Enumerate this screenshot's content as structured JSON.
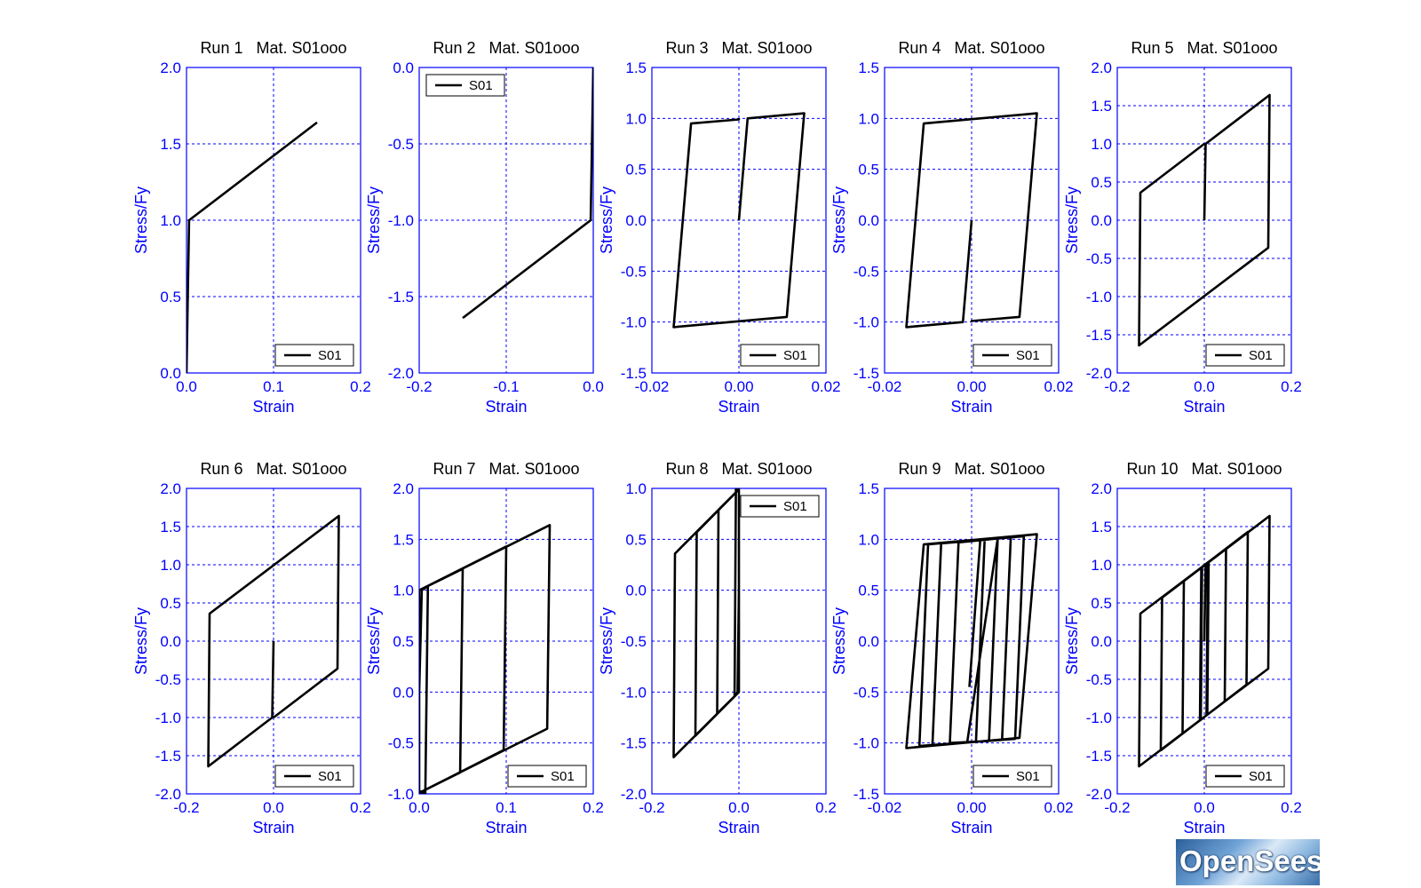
{
  "colors": {
    "axis": "#0000ff",
    "grid": "#0000ff",
    "curve": "#000000",
    "text": "#000000"
  },
  "logo": {
    "text": "OpenSees"
  },
  "chart_data": [
    {
      "type": "line",
      "title": "Run 1   Mat. S01ooo",
      "xlabel": "Strain",
      "ylabel": "Stress/Fy",
      "xlim": [
        0,
        0.2
      ],
      "ylim": [
        0,
        2
      ],
      "xticks": [
        0,
        0.1,
        0.2
      ],
      "xtick_labels": [
        "0.0",
        "0.1",
        "0.2"
      ],
      "yticks": [
        0,
        0.5,
        1,
        1.5,
        2
      ],
      "ytick_labels": [
        "0.0",
        "0.5",
        "1.0",
        "1.5",
        "2.0"
      ],
      "legend": "S01",
      "legend_pos": "bottom-right",
      "series": [
        {
          "name": "S01",
          "x": [
            0,
            0.003,
            0.15
          ],
          "y": [
            0,
            1.0,
            1.64
          ]
        }
      ]
    },
    {
      "type": "line",
      "title": "Run 2   Mat. S01ooo",
      "xlabel": "Strain",
      "ylabel": "Stress/Fy",
      "xlim": [
        -0.2,
        0
      ],
      "ylim": [
        -2,
        0
      ],
      "xticks": [
        -0.2,
        -0.1,
        0
      ],
      "xtick_labels": [
        "-0.2",
        "-0.1",
        "0.0"
      ],
      "yticks": [
        -2,
        -1.5,
        -1,
        -0.5,
        0
      ],
      "ytick_labels": [
        "-2.0",
        "-1.5",
        "-1.0",
        "-0.5",
        "0.0"
      ],
      "legend": "S01",
      "legend_pos": "top-left",
      "series": [
        {
          "name": "S01",
          "x": [
            0,
            -0.003,
            -0.15
          ],
          "y": [
            0,
            -1.0,
            -1.64
          ]
        }
      ]
    },
    {
      "type": "line",
      "title": "Run 3   Mat. S01ooo",
      "xlabel": "Strain",
      "ylabel": "Stress/Fy",
      "xlim": [
        -0.02,
        0.02
      ],
      "ylim": [
        -1.5,
        1.5
      ],
      "xticks": [
        -0.02,
        0,
        0.02
      ],
      "xtick_labels": [
        "-0.02",
        "0.00",
        "0.02"
      ],
      "yticks": [
        -1.5,
        -1,
        -0.5,
        0,
        0.5,
        1,
        1.5
      ],
      "ytick_labels": [
        "-1.5",
        "-1.0",
        "-0.5",
        "0.0",
        "0.5",
        "1.0",
        "1.5"
      ],
      "legend": "S01",
      "legend_pos": "bottom-right",
      "series": [
        {
          "name": "S01",
          "x": [
            0,
            0.002,
            0.015,
            0.011,
            -0.015,
            -0.011,
            0.0,
            0.0
          ],
          "y": [
            0,
            1.0,
            1.05,
            -0.95,
            -1.05,
            0.95,
            0.99,
            1.0
          ]
        }
      ]
    },
    {
      "type": "line",
      "title": "Run 4   Mat. S01ooo",
      "xlabel": "Strain",
      "ylabel": "Stress/Fy",
      "xlim": [
        -0.02,
        0.02
      ],
      "ylim": [
        -1.5,
        1.5
      ],
      "xticks": [
        -0.02,
        0,
        0.02
      ],
      "xtick_labels": [
        "-0.02",
        "0.00",
        "0.02"
      ],
      "yticks": [
        -1.5,
        -1,
        -0.5,
        0,
        0.5,
        1,
        1.5
      ],
      "ytick_labels": [
        "-1.5",
        "-1.0",
        "-0.5",
        "0.0",
        "0.5",
        "1.0",
        "1.5"
      ],
      "legend": "S01",
      "legend_pos": "bottom-right",
      "series": [
        {
          "name": "S01",
          "x": [
            0,
            -0.002,
            -0.015,
            -0.011,
            0.015,
            0.011,
            0.0,
            0.0
          ],
          "y": [
            0,
            -1.0,
            -1.05,
            0.95,
            1.05,
            -0.95,
            -0.99,
            -1.0
          ]
        }
      ]
    },
    {
      "type": "line",
      "title": "Run 5   Mat. S01ooo",
      "xlabel": "Strain",
      "ylabel": "Stress/Fy",
      "xlim": [
        -0.2,
        0.2
      ],
      "ylim": [
        -2,
        2
      ],
      "xticks": [
        -0.2,
        0,
        0.2
      ],
      "xtick_labels": [
        "-0.2",
        "0.0",
        "0.2"
      ],
      "yticks": [
        -2,
        -1.5,
        -1,
        -0.5,
        0,
        0.5,
        1,
        1.5,
        2
      ],
      "ytick_labels": [
        "-2.0",
        "-1.5",
        "-1.0",
        "-0.5",
        "0.0",
        "0.5",
        "1.0",
        "1.5",
        "2.0"
      ],
      "legend": "S01",
      "legend_pos": "bottom-right",
      "series": [
        {
          "name": "S01",
          "x": [
            0,
            0.003,
            0.15,
            0.147,
            -0.15,
            -0.147,
            0.0
          ],
          "y": [
            0,
            1.0,
            1.64,
            -0.36,
            -1.64,
            0.36,
            1.0
          ]
        }
      ]
    },
    {
      "type": "line",
      "title": "Run 6   Mat. S01ooo",
      "xlabel": "Strain",
      "ylabel": "Stress/Fy",
      "xlim": [
        -0.2,
        0.2
      ],
      "ylim": [
        -2,
        2
      ],
      "xticks": [
        -0.2,
        0,
        0.2
      ],
      "xtick_labels": [
        "-0.2",
        "0.0",
        "0.2"
      ],
      "yticks": [
        -2,
        -1.5,
        -1,
        -0.5,
        0,
        0.5,
        1,
        1.5,
        2
      ],
      "ytick_labels": [
        "-2.0",
        "-1.5",
        "-1.0",
        "-0.5",
        "0.0",
        "0.5",
        "1.0",
        "1.5",
        "2.0"
      ],
      "legend": "S01",
      "legend_pos": "bottom-right",
      "series": [
        {
          "name": "S01",
          "x": [
            0,
            -0.003,
            -0.15,
            -0.147,
            0.15,
            0.147,
            0.0
          ],
          "y": [
            0,
            -1.0,
            -1.64,
            0.36,
            1.64,
            -0.36,
            -1.0
          ]
        }
      ]
    },
    {
      "type": "line",
      "title": "Run 7   Mat. S01ooo",
      "xlabel": "Strain",
      "ylabel": "Stress/Fy",
      "xlim": [
        0,
        0.2
      ],
      "ylim": [
        -1,
        2
      ],
      "xticks": [
        0,
        0.1,
        0.2
      ],
      "xtick_labels": [
        "0.0",
        "0.1",
        "0.2"
      ],
      "yticks": [
        -1,
        -0.5,
        0,
        0.5,
        1,
        1.5,
        2
      ],
      "ytick_labels": [
        "-1.0",
        "-0.5",
        "0.0",
        "0.5",
        "1.0",
        "1.5",
        "2.0"
      ],
      "legend": "S01",
      "legend_pos": "bottom-right",
      "series": [
        {
          "name": "S01",
          "x": [
            0,
            0.003,
            0.01,
            0.007,
            0.0,
            0.0,
            0.05,
            0.047,
            0.0,
            0.0,
            0.1,
            0.097,
            0.0,
            0.0,
            0.15,
            0.147,
            0.0
          ],
          "y": [
            0,
            1.0,
            1.04,
            -1.0,
            -0.97,
            1.0,
            1.21,
            -0.79,
            -0.99,
            1.0,
            1.43,
            -0.57,
            -0.99,
            1.0,
            1.64,
            -0.36,
            -0.99
          ]
        }
      ]
    },
    {
      "type": "line",
      "title": "Run 8   Mat. S01ooo",
      "xlabel": "Strain",
      "ylabel": "Stress/Fy",
      "xlim": [
        -0.2,
        0.2
      ],
      "ylim": [
        -2,
        1
      ],
      "xticks": [
        -0.2,
        0,
        0.2
      ],
      "xtick_labels": [
        "-0.2",
        "0.0",
        "0.2"
      ],
      "yticks": [
        -2,
        -1.5,
        -1,
        -0.5,
        0,
        0.5,
        1
      ],
      "ytick_labels": [
        "-2.0",
        "-1.5",
        "-1.0",
        "-0.5",
        "0.0",
        "0.5",
        "1.0"
      ],
      "legend": "S01",
      "legend_pos": "top-right",
      "series": [
        {
          "name": "S01",
          "x": [
            0,
            -0.003,
            -0.01,
            -0.007,
            0.0,
            0.0,
            -0.05,
            -0.047,
            0.0,
            0.0,
            -0.1,
            -0.097,
            0.0,
            0.0,
            -0.15,
            -0.147,
            0.0
          ],
          "y": [
            0,
            -1.0,
            -1.04,
            1.0,
            0.97,
            -1.0,
            -1.21,
            0.79,
            0.99,
            -1.0,
            -1.43,
            0.57,
            0.99,
            -1.0,
            -1.64,
            0.36,
            0.99
          ]
        }
      ]
    },
    {
      "type": "line",
      "title": "Run 9   Mat. S01ooo",
      "xlabel": "Strain",
      "ylabel": "Stress/Fy",
      "xlim": [
        -0.02,
        0.02
      ],
      "ylim": [
        -1.5,
        1.5
      ],
      "xticks": [
        -0.02,
        0,
        0.02
      ],
      "xtick_labels": [
        "-0.02",
        "0.00",
        "0.02"
      ],
      "yticks": [
        -1.5,
        -1,
        -0.5,
        0,
        0.5,
        1,
        1.5
      ],
      "ytick_labels": [
        "-1.5",
        "-1.0",
        "-0.5",
        "0.0",
        "0.5",
        "1.0",
        "1.5"
      ],
      "legend": "S01",
      "legend_pos": "bottom-right",
      "series": [
        {
          "name": "S01",
          "x": [
            -0.0005,
            0.002,
            0.003,
            0.001,
            -0.001,
            0.006,
            0.004,
            -0.005,
            -0.003,
            0.009,
            0.007,
            -0.009,
            -0.007,
            0.012,
            0.01,
            -0.012,
            -0.01,
            0.015,
            0.011,
            -0.015,
            -0.011,
            0.015,
            0.011
          ],
          "y": [
            -0.45,
            1.0,
            1.0,
            -0.99,
            -0.99,
            1.01,
            -0.98,
            -1.0,
            0.97,
            1.02,
            -0.97,
            -1.02,
            0.96,
            1.03,
            -0.96,
            -1.03,
            0.95,
            1.05,
            -0.95,
            -1.05,
            0.95,
            1.05,
            -0.95
          ]
        }
      ]
    },
    {
      "type": "line",
      "title": "Run 10   Mat. S01ooo",
      "xlabel": "Strain",
      "ylabel": "Stress/Fy",
      "xlim": [
        -0.2,
        0.2
      ],
      "ylim": [
        -2,
        2
      ],
      "xticks": [
        -0.2,
        0,
        0.2
      ],
      "xtick_labels": [
        "-0.2",
        "0.0",
        "0.2"
      ],
      "yticks": [
        -2,
        -1.5,
        -1,
        -0.5,
        0,
        0.5,
        1,
        1.5,
        2
      ],
      "ytick_labels": [
        "-2.0",
        "-1.5",
        "-1.0",
        "-0.5",
        "0.0",
        "0.5",
        "1.0",
        "1.5",
        "2.0"
      ],
      "legend": "S01",
      "legend_pos": "bottom-right",
      "series": [
        {
          "name": "S01",
          "x": [
            0,
            0.003,
            0.008,
            0.005,
            -0.008,
            -0.005,
            0.01,
            0.007,
            -0.01,
            -0.007,
            0.05,
            0.047,
            -0.05,
            -0.047,
            0.1,
            0.097,
            -0.1,
            -0.097,
            0.15,
            0.147,
            -0.15,
            -0.147,
            0.15
          ],
          "y": [
            0,
            1.0,
            1.03,
            -0.97,
            -1.03,
            0.97,
            1.04,
            -0.96,
            -1.04,
            0.96,
            1.21,
            -0.79,
            -1.21,
            0.79,
            1.43,
            -0.57,
            -1.43,
            0.57,
            1.64,
            -0.36,
            -1.64,
            0.36,
            1.64
          ]
        }
      ]
    }
  ]
}
